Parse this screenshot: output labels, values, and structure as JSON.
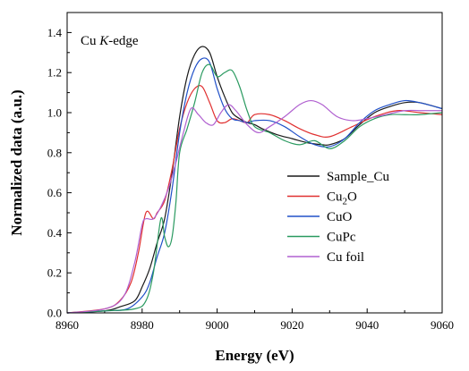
{
  "chart_data": {
    "type": "line",
    "annotation": {
      "prefix": "Cu ",
      "italic": "K",
      "suffix": "-edge"
    },
    "xlabel": "Energy (eV)",
    "ylabel": "Normalized data (a.u.)",
    "xlim": [
      8960,
      9060
    ],
    "ylim": [
      0,
      1.5
    ],
    "xticks": [
      8960,
      8980,
      9000,
      9020,
      9040,
      9060
    ],
    "yticks": [
      0.0,
      0.2,
      0.4,
      0.6,
      0.8,
      1.0,
      1.2,
      1.4
    ],
    "xtick_labels": [
      "8960",
      "8980",
      "9000",
      "9020",
      "9040",
      "9060"
    ],
    "ytick_labels": [
      "0.0",
      "0.2",
      "0.4",
      "0.6",
      "0.8",
      "1.0",
      "1.2",
      "1.4"
    ],
    "legend_position": "center-right",
    "series": [
      {
        "name": "Sample_Cu",
        "label_main": "Sample_Cu",
        "label_sub": "",
        "label_tail": "",
        "color": "#1a1a1a",
        "x": [
          8960,
          8970,
          8974,
          8978,
          8980,
          8982,
          8984,
          8986,
          8988,
          8990,
          8992,
          8994,
          8996,
          8998,
          9000,
          9002,
          9004,
          9006,
          9008,
          9010,
          9012,
          9016,
          9020,
          9024,
          9028,
          9030,
          9034,
          9038,
          9042,
          9046,
          9050,
          9054,
          9060
        ],
        "y": [
          0.0,
          0.01,
          0.03,
          0.06,
          0.13,
          0.22,
          0.35,
          0.47,
          0.7,
          0.98,
          1.18,
          1.29,
          1.33,
          1.3,
          1.18,
          1.08,
          1.0,
          0.97,
          0.95,
          0.94,
          0.92,
          0.89,
          0.87,
          0.85,
          0.84,
          0.84,
          0.87,
          0.94,
          1.0,
          1.03,
          1.05,
          1.05,
          1.02
        ]
      },
      {
        "name": "Cu2O",
        "label_main": "Cu",
        "label_sub": "2",
        "label_tail": "O",
        "color": "#e03030",
        "x": [
          8960,
          8970,
          8974,
          8977,
          8979,
          8981,
          8983,
          8984,
          8986,
          8988,
          8990,
          8992,
          8994,
          8996,
          8998,
          9000,
          9002,
          9004,
          9006,
          9008,
          9010,
          9014,
          9018,
          9022,
          9026,
          9030,
          9036,
          9042,
          9048,
          9054,
          9060
        ],
        "y": [
          0.0,
          0.02,
          0.06,
          0.15,
          0.3,
          0.5,
          0.47,
          0.5,
          0.56,
          0.72,
          0.92,
          1.05,
          1.12,
          1.13,
          1.05,
          0.96,
          0.95,
          0.97,
          0.96,
          0.95,
          0.99,
          0.99,
          0.96,
          0.92,
          0.89,
          0.88,
          0.93,
          0.98,
          1.01,
          1.0,
          0.99
        ]
      },
      {
        "name": "CuO",
        "label_main": "CuO",
        "label_sub": "",
        "label_tail": "",
        "color": "#2050c8",
        "x": [
          8960,
          8970,
          8976,
          8980,
          8982,
          8984,
          8986,
          8988,
          8990,
          8992,
          8994,
          8996,
          8998,
          9000,
          9002,
          9004,
          9006,
          9008,
          9010,
          9014,
          9018,
          9022,
          9026,
          9030,
          9034,
          9038,
          9042,
          9046,
          9050,
          9054,
          9060
        ],
        "y": [
          0.0,
          0.01,
          0.02,
          0.08,
          0.15,
          0.28,
          0.4,
          0.62,
          0.9,
          1.1,
          1.22,
          1.27,
          1.25,
          1.12,
          1.02,
          0.97,
          0.96,
          0.95,
          0.96,
          0.96,
          0.93,
          0.88,
          0.84,
          0.83,
          0.87,
          0.95,
          1.01,
          1.04,
          1.06,
          1.05,
          1.02
        ]
      },
      {
        "name": "CuPc",
        "label_main": "CuPc",
        "label_sub": "",
        "label_tail": "",
        "color": "#2a9a60",
        "x": [
          8960,
          8970,
          8978,
          8981,
          8983,
          8985,
          8986,
          8987,
          8988,
          8989,
          8990,
          8992,
          8994,
          8996,
          8998,
          9000,
          9002,
          9004,
          9006,
          9008,
          9010,
          9014,
          9018,
          9022,
          9026,
          9030,
          9034,
          9038,
          9042,
          9046,
          9050,
          9054,
          9060
        ],
        "y": [
          0.0,
          0.01,
          0.02,
          0.06,
          0.2,
          0.47,
          0.38,
          0.33,
          0.38,
          0.55,
          0.8,
          0.92,
          1.05,
          1.2,
          1.24,
          1.18,
          1.2,
          1.21,
          1.13,
          1.01,
          0.93,
          0.9,
          0.86,
          0.84,
          0.86,
          0.82,
          0.86,
          0.93,
          0.97,
          0.99,
          0.99,
          0.99,
          1.0
        ]
      },
      {
        "name": "Cu foil",
        "label_main": "Cu foil",
        "label_sub": "",
        "label_tail": "",
        "color": "#b060d0",
        "x": [
          8960,
          8970,
          8975,
          8978,
          8980,
          8981,
          8983,
          8985,
          8987,
          8989,
          8991,
          8993,
          8995,
          8997,
          8999,
          9001,
          9003,
          9005,
          9008,
          9011,
          9014,
          9018,
          9022,
          9025,
          9028,
          9032,
          9036,
          9040,
          9045,
          9050,
          9055,
          9060
        ],
        "y": [
          0.0,
          0.02,
          0.08,
          0.25,
          0.44,
          0.47,
          0.47,
          0.53,
          0.62,
          0.75,
          0.9,
          1.02,
          0.99,
          0.95,
          0.94,
          1.0,
          1.04,
          1.01,
          0.94,
          0.9,
          0.93,
          0.98,
          1.04,
          1.06,
          1.04,
          0.98,
          0.96,
          0.97,
          0.99,
          1.01,
          1.01,
          1.01
        ]
      }
    ]
  }
}
